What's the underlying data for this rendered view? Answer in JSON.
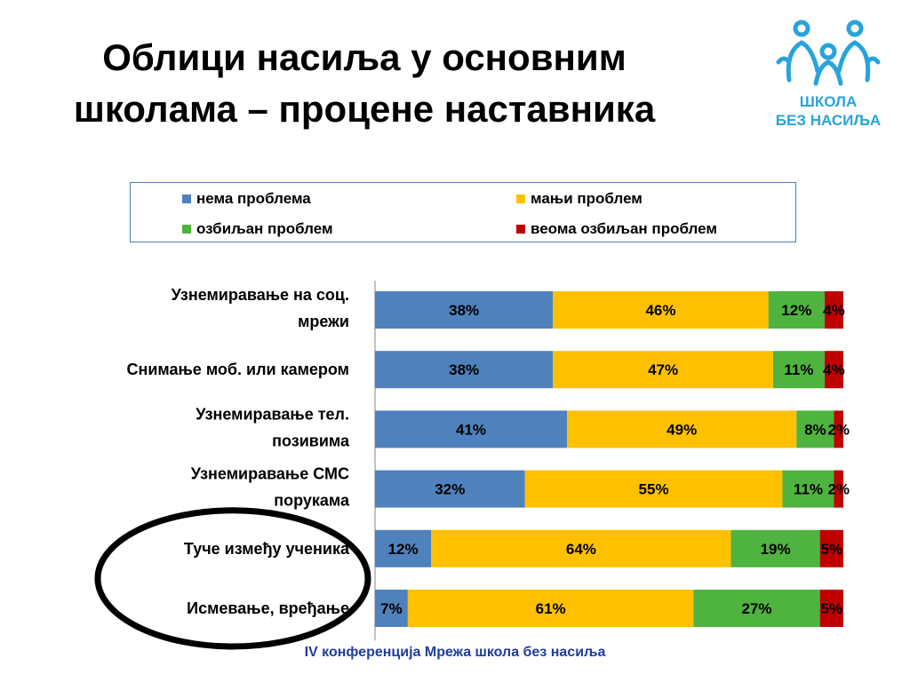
{
  "title_lines": [
    "Облици насиља у основним",
    "школама – процене наставника"
  ],
  "logo": {
    "line1": "ШКОЛА",
    "line2": "БЕЗ НАСИЉА",
    "color": "#29a3dc"
  },
  "footer": "IV конференција Мрежа школа без насиља",
  "colors": {
    "series": [
      "#4f81bd",
      "#ffc000",
      "#4fb33f",
      "#c00000"
    ],
    "border": "#4a7ebb",
    "footer": "#1f3d9b"
  },
  "chart_data": {
    "type": "bar",
    "orientation": "horizontal",
    "stacked": true,
    "legend_position": "top",
    "grid": false,
    "xlim": [
      0,
      100
    ],
    "categories": [
      [
        "Узнемиравање на соц.",
        "мрежи"
      ],
      [
        "Снимање моб. или камером"
      ],
      [
        "Узнемиравање тел.",
        "позивима"
      ],
      [
        "Узнемиравање СМС",
        "порукама"
      ],
      [
        "Туче између ученика"
      ],
      [
        "Исмевање, вређање"
      ]
    ],
    "series": [
      {
        "name": "нема проблема",
        "values": [
          38,
          38,
          41,
          32,
          12,
          7
        ],
        "labels": [
          "38%",
          "38%",
          "41%",
          "32%",
          "12%",
          "7%"
        ]
      },
      {
        "name": "мањи проблем",
        "values": [
          46,
          47,
          49,
          55,
          64,
          61
        ],
        "labels": [
          "46%",
          "47%",
          "49%",
          "55%",
          "64%",
          "61%"
        ]
      },
      {
        "name": "озбиљан проблем",
        "values": [
          12,
          11,
          8,
          11,
          19,
          27
        ],
        "labels": [
          "12%",
          "11%",
          "8%",
          "11%",
          "19%",
          "27%"
        ]
      },
      {
        "name": "веома озбиљан проблем",
        "values": [
          4,
          4,
          2,
          2,
          5,
          5
        ],
        "labels": [
          "4%",
          "4%",
          "2%",
          "2%",
          "5%",
          "5%"
        ]
      }
    ],
    "highlight": {
      "type": "ellipse",
      "categories": [
        4,
        5
      ]
    }
  }
}
